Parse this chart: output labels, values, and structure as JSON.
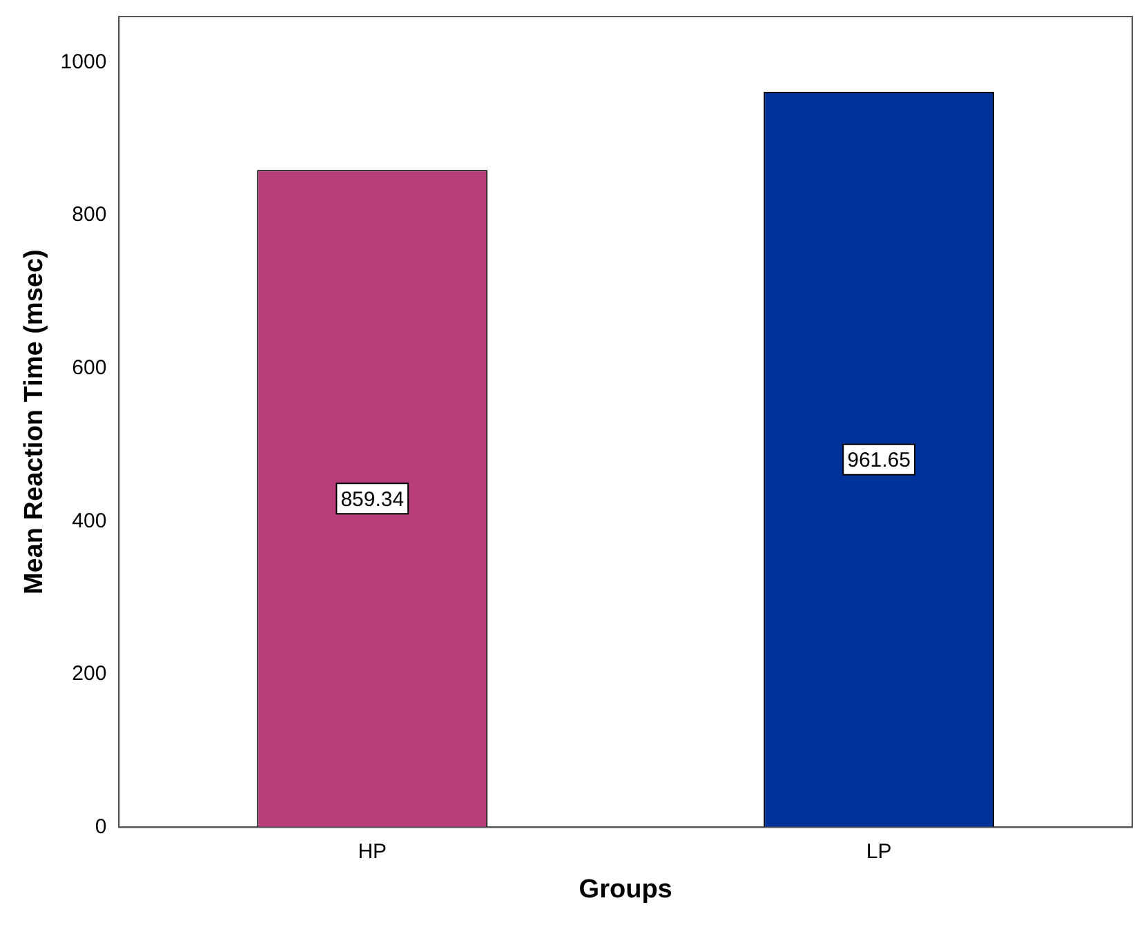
{
  "chart_data": {
    "type": "bar",
    "xlabel": "Groups",
    "ylabel": "Mean Reaction Time (msec)",
    "categories": [
      "HP",
      "LP"
    ],
    "values": [
      859.34,
      961.65
    ],
    "colors": [
      "#b83e7a",
      "#003399"
    ],
    "ylim": [
      0,
      1060
    ],
    "yticks": [
      0,
      200,
      400,
      600,
      800,
      1000
    ],
    "grid": false,
    "legend": false,
    "data_labels": true
  }
}
